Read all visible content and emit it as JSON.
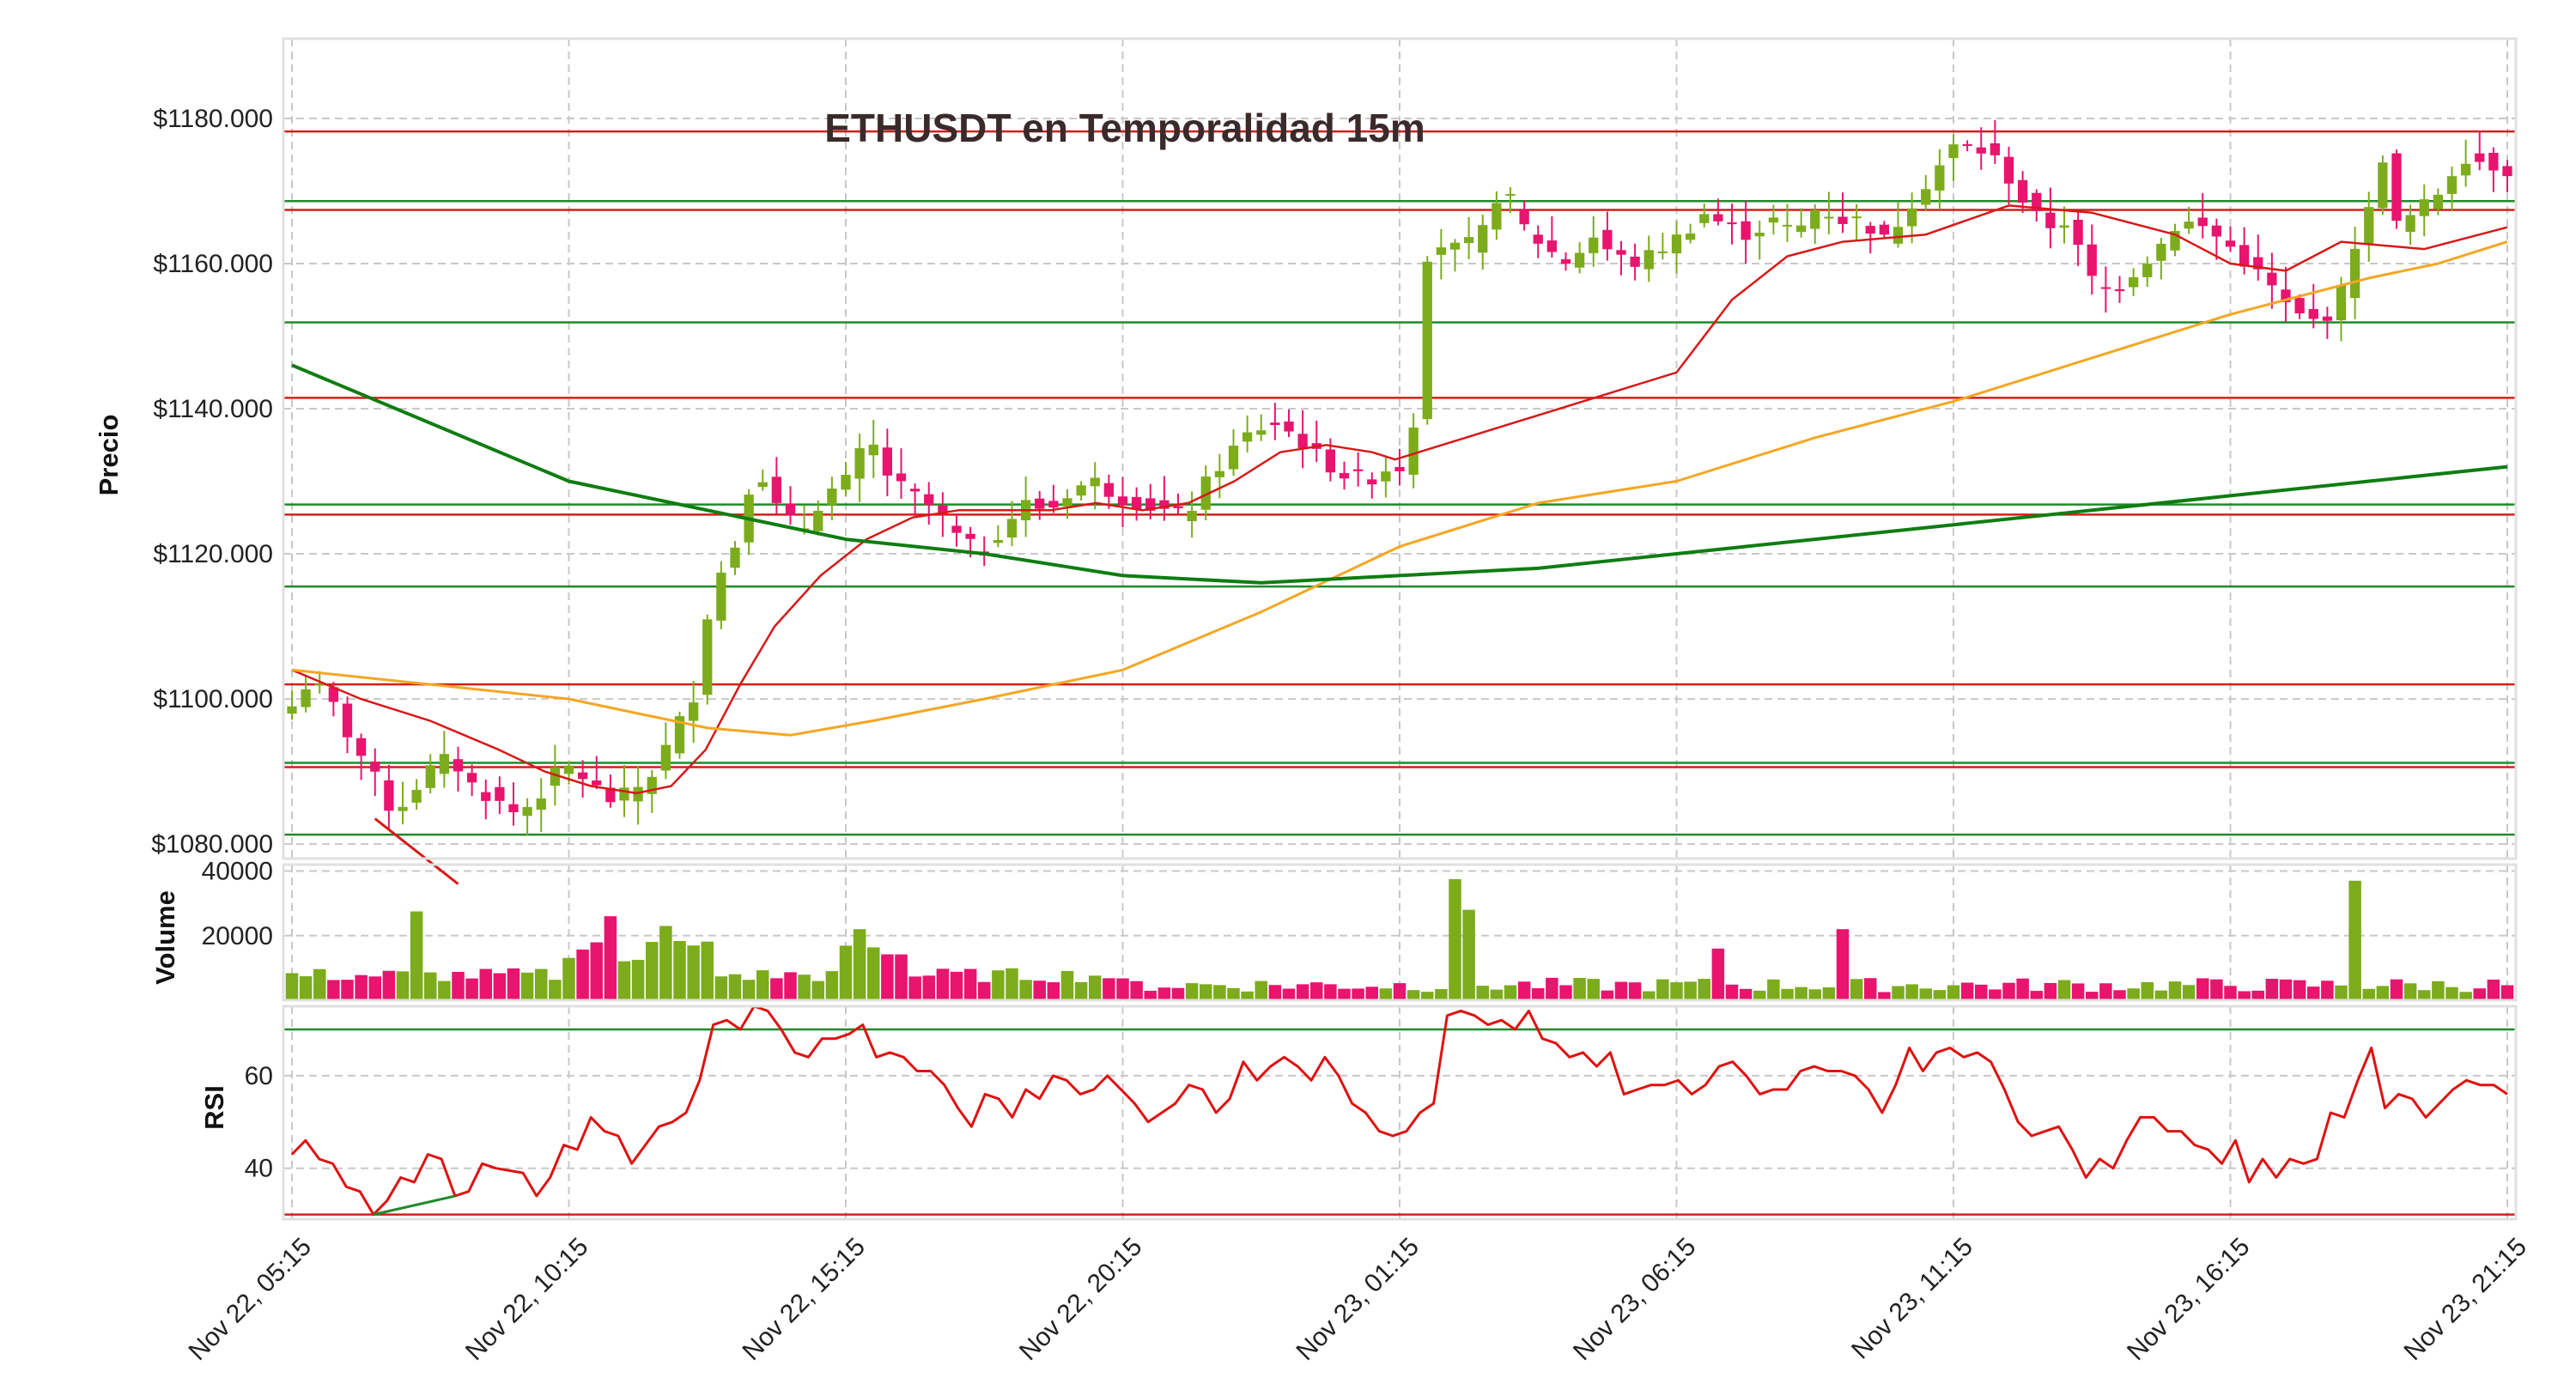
{
  "chart_data": {
    "type": "candlestick",
    "title": "ETHUSDT en Temporalidad 15m",
    "colors": {
      "up": "#7cac1c",
      "down": "#e8146e",
      "ema_fast": "#d81818",
      "ema_mid": "#f5a623",
      "ema_slow": "#0f7d12",
      "resistance": "#d0201a",
      "support": "#1f8a2a",
      "rsi_line": "#e01010",
      "grid": "#c8c8c8"
    },
    "x_tick_labels": [
      "Nov 22, 05:15",
      "Nov 22, 10:15",
      "Nov 22, 15:15",
      "Nov 22, 20:15",
      "Nov 23, 01:15",
      "Nov 23, 06:15",
      "Nov 23, 11:15",
      "Nov 23, 16:15",
      "Nov 23, 21:15"
    ],
    "x_tick_candle_index": [
      0,
      20,
      40,
      60,
      80,
      100,
      120,
      140,
      160
    ],
    "n_candles": 161,
    "price_panel": {
      "ylabel": "Precio",
      "ylim": [
        1078,
        1191
      ],
      "yticks": [
        1080,
        1100,
        1120,
        1140,
        1160,
        1180
      ],
      "ytick_labels": [
        "$1080.000",
        "$1100.000",
        "$1120.000",
        "$1140.000",
        "$1160.000",
        "$1180.000"
      ],
      "resistance_levels": [
        1178.2,
        1167.4,
        1141.5,
        1125.4,
        1102.0,
        1090.6
      ],
      "support_levels": [
        1168.6,
        1151.9,
        1126.8,
        1115.5,
        1091.2,
        1081.3
      ],
      "keypoints_close": [
        [
          0,
          1099
        ],
        [
          1,
          1102
        ],
        [
          3,
          1101
        ],
        [
          5,
          1095
        ],
        [
          7,
          1090
        ],
        [
          9,
          1084
        ],
        [
          12,
          1090
        ],
        [
          14,
          1092
        ],
        [
          16,
          1088
        ],
        [
          18,
          1086
        ],
        [
          20,
          1084
        ],
        [
          22,
          1087
        ],
        [
          24,
          1091
        ],
        [
          26,
          1089
        ],
        [
          28,
          1086
        ],
        [
          30,
          1087
        ],
        [
          32,
          1090
        ],
        [
          34,
          1096
        ],
        [
          36,
          1102
        ],
        [
          37,
          1115
        ],
        [
          39,
          1120
        ],
        [
          41,
          1133
        ],
        [
          43,
          1126
        ],
        [
          45,
          1123
        ],
        [
          47,
          1128
        ],
        [
          49,
          1130
        ],
        [
          51,
          1136
        ],
        [
          53,
          1130
        ],
        [
          55,
          1128
        ],
        [
          57,
          1126
        ],
        [
          59,
          1122
        ],
        [
          61,
          1120
        ],
        [
          63,
          1124
        ],
        [
          65,
          1127
        ],
        [
          67,
          1126
        ],
        [
          69,
          1129
        ],
        [
          71,
          1130
        ],
        [
          73,
          1128
        ],
        [
          75,
          1127
        ],
        [
          77,
          1126
        ],
        [
          79,
          1125
        ],
        [
          81,
          1130
        ],
        [
          83,
          1134
        ],
        [
          85,
          1137
        ],
        [
          87,
          1138
        ],
        [
          89,
          1136
        ],
        [
          91,
          1133
        ],
        [
          93,
          1131
        ],
        [
          95,
          1130
        ],
        [
          97,
          1132
        ],
        [
          99,
          1132
        ],
        [
          100,
          1160
        ],
        [
          101,
          1163
        ],
        [
          103,
          1162
        ],
        [
          105,
          1163
        ],
        [
          107,
          1171
        ],
        [
          109,
          1165
        ],
        [
          111,
          1162
        ],
        [
          113,
          1160
        ],
        [
          115,
          1164
        ],
        [
          117,
          1161
        ],
        [
          119,
          1160
        ],
        [
          121,
          1162
        ],
        [
          123,
          1164
        ],
        [
          125,
          1167
        ],
        [
          127,
          1165
        ],
        [
          129,
          1164
        ],
        [
          131,
          1166
        ],
        [
          133,
          1164
        ],
        [
          135,
          1168
        ],
        [
          137,
          1166
        ],
        [
          139,
          1166
        ],
        [
          141,
          1163
        ],
        [
          143,
          1168
        ],
        [
          145,
          1172
        ],
        [
          147,
          1176
        ],
        [
          149,
          1176
        ],
        [
          151,
          1174
        ],
        [
          153,
          1169
        ],
        [
          155,
          1165
        ],
        [
          157,
          1166
        ],
        [
          159,
          1158
        ],
        [
          161,
          1156
        ],
        [
          163,
          1159
        ],
        [
          165,
          1162
        ],
        [
          167,
          1166
        ],
        [
          169,
          1165
        ],
        [
          171,
          1163
        ],
        [
          173,
          1160
        ],
        [
          175,
          1157
        ],
        [
          177,
          1153
        ],
        [
          179,
          1152
        ],
        [
          181,
          1154
        ],
        [
          182,
          1161
        ],
        [
          184,
          1168
        ],
        [
          185,
          1175
        ],
        [
          186,
          1165
        ],
        [
          188,
          1167
        ],
        [
          190,
          1170
        ],
        [
          192,
          1175
        ],
        [
          194,
          1174
        ],
        [
          196,
          1173
        ]
      ],
      "ema_fast_keypoints": [
        [
          0,
          1104
        ],
        [
          6,
          1100
        ],
        [
          12,
          1097
        ],
        [
          18,
          1093
        ],
        [
          22,
          1090
        ],
        [
          26,
          1088
        ],
        [
          30,
          1087
        ],
        [
          33,
          1088
        ],
        [
          36,
          1093
        ],
        [
          39,
          1102
        ],
        [
          42,
          1110
        ],
        [
          46,
          1117
        ],
        [
          50,
          1122
        ],
        [
          54,
          1125
        ],
        [
          58,
          1126
        ],
        [
          62,
          1126
        ],
        [
          66,
          1126
        ],
        [
          70,
          1127
        ],
        [
          74,
          1126
        ],
        [
          78,
          1127
        ],
        [
          82,
          1130
        ],
        [
          86,
          1134
        ],
        [
          90,
          1135
        ],
        [
          94,
          1134
        ],
        [
          96,
          1133
        ]
      ],
      "ema_mid_keypoints": [
        [
          0,
          1104
        ],
        [
          10,
          1102
        ],
        [
          20,
          1100
        ],
        [
          30,
          1096
        ],
        [
          36,
          1095
        ],
        [
          42,
          1097
        ],
        [
          50,
          1100
        ],
        [
          60,
          1104
        ],
        [
          70,
          1112
        ],
        [
          80,
          1121
        ],
        [
          90,
          1127
        ],
        [
          100,
          1130
        ],
        [
          110,
          1136
        ],
        [
          120,
          1141
        ],
        [
          130,
          1147
        ],
        [
          140,
          1153
        ],
        [
          150,
          1158
        ],
        [
          155,
          1160
        ],
        [
          160,
          1163
        ]
      ],
      "ema_slow_keypoints": [
        [
          0,
          1146
        ],
        [
          10,
          1138
        ],
        [
          20,
          1130
        ],
        [
          30,
          1126
        ],
        [
          40,
          1122
        ],
        [
          50,
          1120
        ],
        [
          60,
          1117
        ],
        [
          70,
          1116
        ],
        [
          80,
          1117
        ],
        [
          90,
          1118
        ],
        [
          100,
          1120
        ],
        [
          110,
          1122
        ],
        [
          120,
          1124
        ],
        [
          130,
          1126
        ],
        [
          140,
          1128
        ],
        [
          150,
          1130
        ],
        [
          160,
          1132
        ]
      ]
    },
    "volume_panel": {
      "ylabel": "Volume",
      "ylim": [
        0,
        42000
      ],
      "yticks": [
        20000,
        40000
      ],
      "ytick_labels": [
        "20000",
        "40000"
      ],
      "spikes": [
        [
          9,
          27500
        ],
        [
          23,
          26000
        ],
        [
          27,
          23000
        ],
        [
          41,
          22000
        ],
        [
          84,
          37500
        ],
        [
          85,
          28000
        ],
        [
          112,
          22000
        ],
        [
          149,
          37000
        ],
        [
          103,
          16000
        ]
      ]
    },
    "rsi_panel": {
      "ylabel": "RSI",
      "ylim": [
        29,
        75
      ],
      "yticks": [
        40,
        60
      ],
      "ytick_labels": [
        "40",
        "60"
      ],
      "overbought": 70,
      "oversold": 30,
      "keypoints": [
        [
          0,
          43
        ],
        [
          1,
          46
        ],
        [
          2,
          42
        ],
        [
          3,
          41
        ],
        [
          4,
          36
        ],
        [
          5,
          35
        ],
        [
          6,
          30
        ],
        [
          7,
          33
        ],
        [
          8,
          38
        ],
        [
          9,
          37
        ],
        [
          10,
          43
        ],
        [
          11,
          42
        ],
        [
          12,
          34
        ],
        [
          13,
          35
        ],
        [
          14,
          41
        ],
        [
          15,
          40
        ],
        [
          17,
          39
        ],
        [
          18,
          34
        ],
        [
          19,
          38
        ],
        [
          20,
          45
        ],
        [
          21,
          44
        ],
        [
          22,
          51
        ],
        [
          23,
          48
        ],
        [
          24,
          47
        ],
        [
          25,
          41
        ],
        [
          26,
          45
        ],
        [
          27,
          49
        ],
        [
          28,
          50
        ],
        [
          29,
          52
        ],
        [
          30,
          59
        ],
        [
          31,
          71
        ],
        [
          32,
          72
        ],
        [
          33,
          70
        ],
        [
          34,
          76
        ],
        [
          35,
          74
        ],
        [
          36,
          70
        ],
        [
          37,
          65
        ],
        [
          38,
          64
        ],
        [
          39,
          68
        ],
        [
          40,
          68
        ],
        [
          41,
          69
        ],
        [
          42,
          71
        ],
        [
          43,
          64
        ],
        [
          44,
          65
        ],
        [
          45,
          64
        ],
        [
          46,
          61
        ],
        [
          47,
          61
        ],
        [
          48,
          58
        ],
        [
          49,
          53
        ],
        [
          50,
          49
        ],
        [
          51,
          56
        ],
        [
          52,
          55
        ],
        [
          53,
          51
        ],
        [
          54,
          57
        ],
        [
          55,
          55
        ],
        [
          56,
          60
        ],
        [
          57,
          59
        ],
        [
          58,
          56
        ],
        [
          59,
          57
        ],
        [
          60,
          60
        ],
        [
          61,
          57
        ],
        [
          62,
          54
        ],
        [
          63,
          50
        ],
        [
          64,
          52
        ],
        [
          65,
          54
        ],
        [
          66,
          58
        ],
        [
          67,
          57
        ],
        [
          68,
          52
        ],
        [
          69,
          55
        ],
        [
          70,
          63
        ],
        [
          71,
          59
        ],
        [
          72,
          62
        ],
        [
          73,
          64
        ],
        [
          74,
          62
        ],
        [
          75,
          59
        ],
        [
          76,
          64
        ],
        [
          77,
          60
        ],
        [
          78,
          54
        ],
        [
          79,
          52
        ],
        [
          80,
          48
        ],
        [
          81,
          47
        ],
        [
          82,
          48
        ],
        [
          83,
          52
        ],
        [
          84,
          54
        ],
        [
          85,
          73
        ],
        [
          86,
          74
        ],
        [
          87,
          73
        ],
        [
          88,
          71
        ],
        [
          89,
          72
        ],
        [
          90,
          70
        ],
        [
          91,
          74
        ],
        [
          92,
          68
        ],
        [
          93,
          67
        ],
        [
          94,
          64
        ],
        [
          95,
          65
        ],
        [
          96,
          62
        ],
        [
          97,
          65
        ],
        [
          98,
          56
        ],
        [
          99,
          57
        ],
        [
          100,
          58
        ],
        [
          101,
          58
        ],
        [
          102,
          59
        ],
        [
          103,
          56
        ],
        [
          104,
          58
        ],
        [
          105,
          62
        ],
        [
          106,
          63
        ],
        [
          107,
          60
        ],
        [
          108,
          56
        ],
        [
          109,
          57
        ],
        [
          110,
          57
        ],
        [
          111,
          61
        ],
        [
          112,
          62
        ],
        [
          113,
          61
        ],
        [
          114,
          61
        ],
        [
          115,
          60
        ],
        [
          116,
          57
        ],
        [
          117,
          52
        ],
        [
          118,
          58
        ],
        [
          119,
          66
        ],
        [
          120,
          61
        ],
        [
          121,
          65
        ],
        [
          122,
          66
        ],
        [
          123,
          64
        ],
        [
          124,
          65
        ],
        [
          125,
          63
        ],
        [
          126,
          57
        ],
        [
          127,
          50
        ],
        [
          128,
          47
        ],
        [
          129,
          48
        ],
        [
          130,
          49
        ],
        [
          131,
          44
        ],
        [
          132,
          38
        ],
        [
          133,
          42
        ],
        [
          134,
          40
        ],
        [
          135,
          46
        ],
        [
          136,
          51
        ],
        [
          137,
          51
        ],
        [
          138,
          48
        ],
        [
          139,
          48
        ],
        [
          140,
          45
        ],
        [
          141,
          44
        ],
        [
          142,
          41
        ],
        [
          143,
          46
        ],
        [
          144,
          37
        ],
        [
          145,
          42
        ],
        [
          146,
          38
        ],
        [
          147,
          42
        ],
        [
          148,
          41
        ],
        [
          149,
          42
        ],
        [
          150,
          52
        ],
        [
          151,
          51
        ],
        [
          152,
          59
        ],
        [
          153,
          66
        ],
        [
          154,
          53
        ],
        [
          155,
          56
        ],
        [
          156,
          55
        ],
        [
          157,
          51
        ],
        [
          158,
          54
        ],
        [
          159,
          57
        ],
        [
          160,
          59
        ],
        [
          161,
          58
        ],
        [
          162,
          58
        ],
        [
          163,
          56
        ]
      ]
    }
  }
}
